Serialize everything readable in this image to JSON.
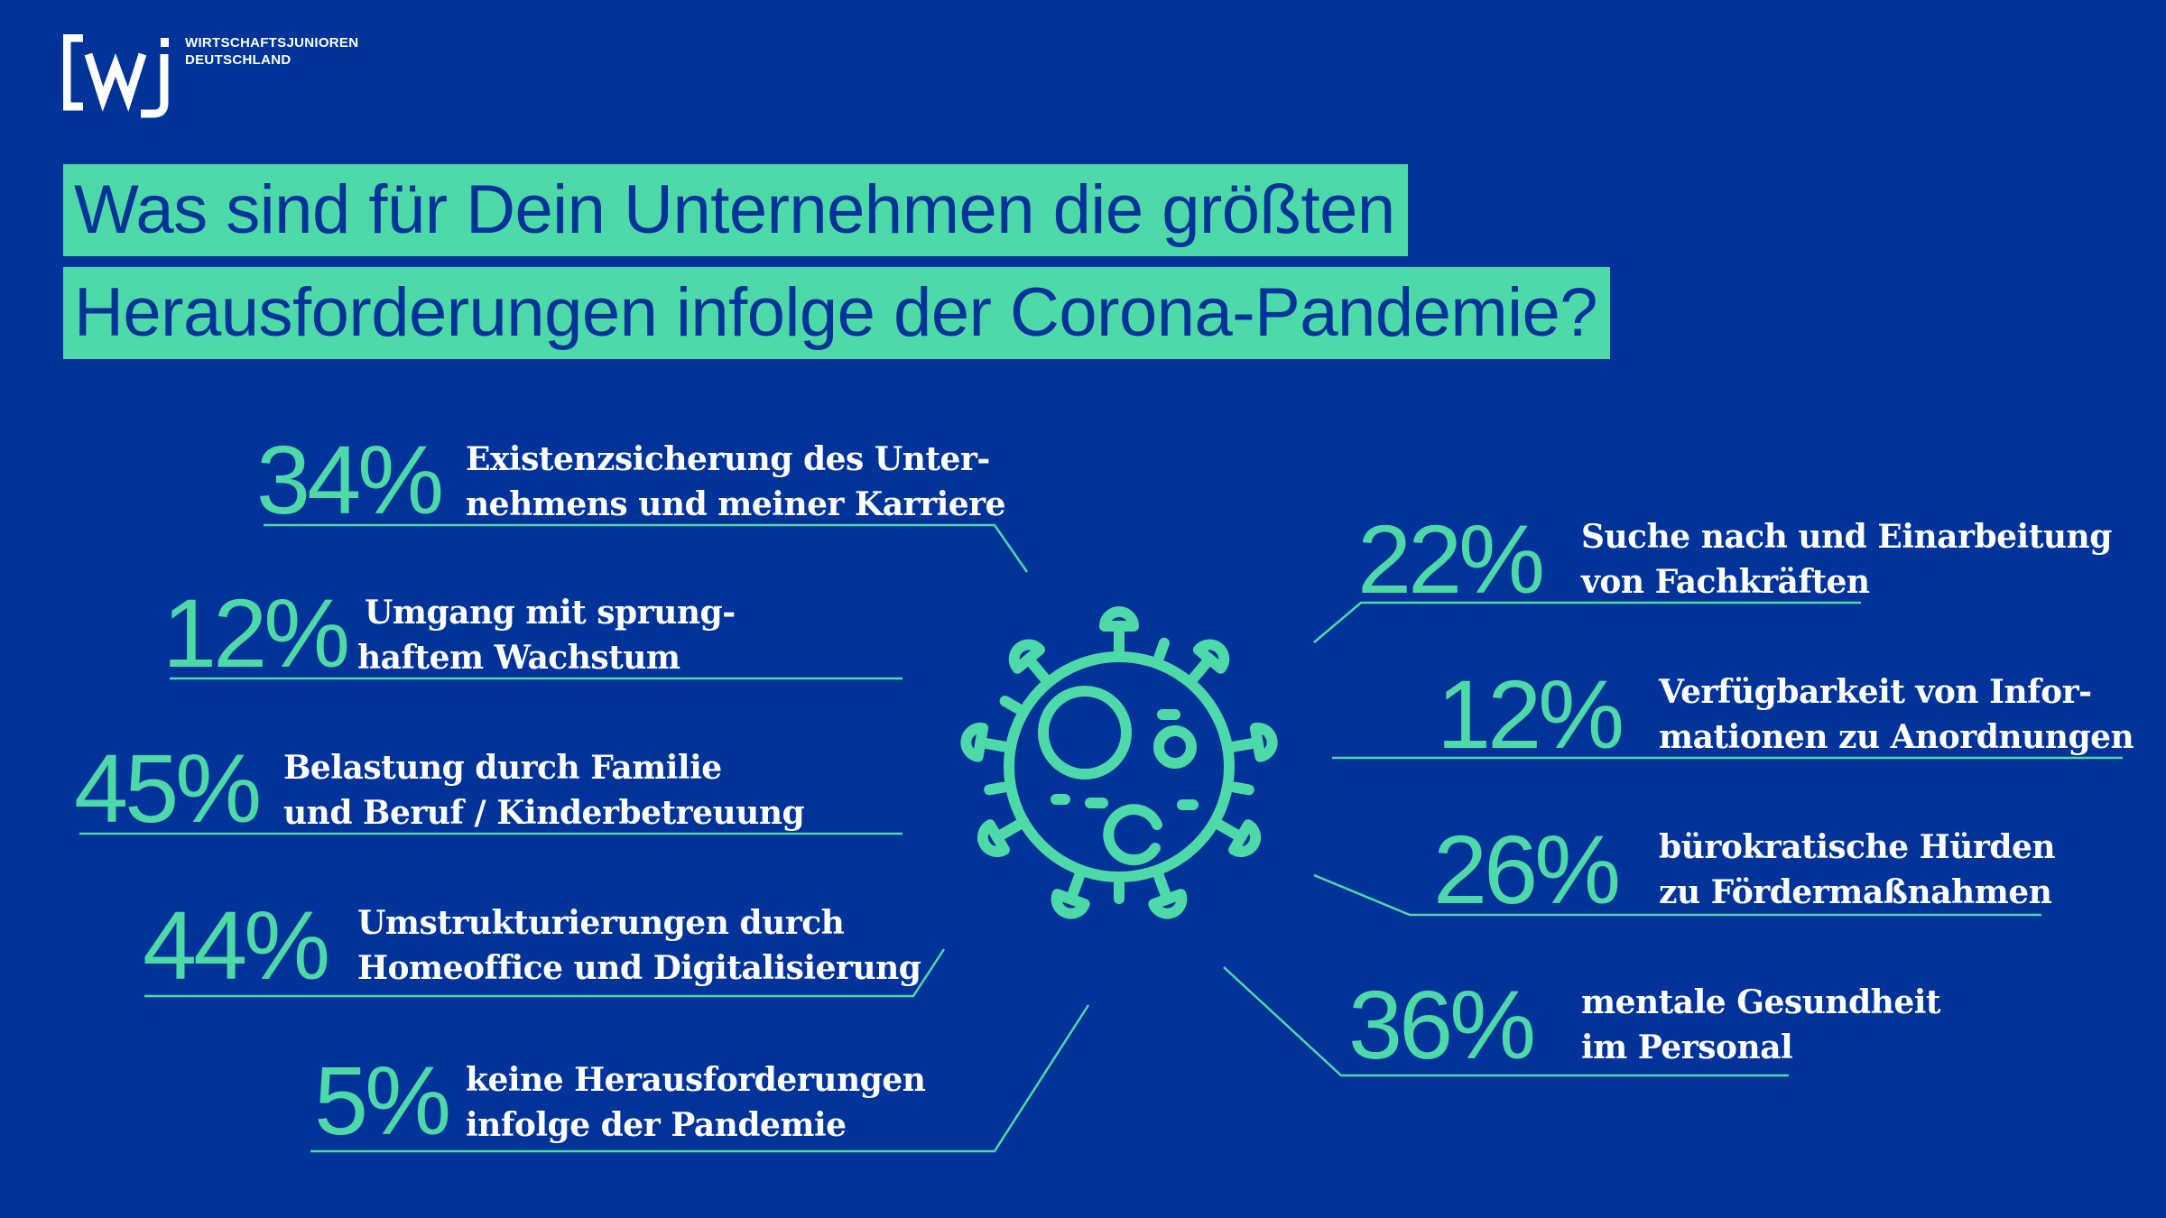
{
  "logo": {
    "mark": "[wj]",
    "line1": "WIRTSCHAFTSJUNIOREN",
    "line2": "DEUTSCHLAND"
  },
  "title": {
    "line1": "Was sind für Dein Unternehmen die größten",
    "line2": "Herausforderungen infolge der Corona-Pandemie?"
  },
  "icon": "coronavirus-icon",
  "colors": {
    "background": "#003399",
    "accent": "#4dd9a8",
    "text": "#ffffff"
  },
  "chart_data": {
    "type": "table",
    "unit": "%",
    "items": [
      {
        "value": 34,
        "pct": "34%",
        "line1": "Existenzsicherung des Unter-",
        "line2": "nehmens und meiner Karriere"
      },
      {
        "value": 12,
        "pct": "12%",
        "line1": "Umgang mit sprung-",
        "line2": "haftem Wachstum"
      },
      {
        "value": 45,
        "pct": "45%",
        "line1": "Belastung durch Familie",
        "line2": "und Beruf / Kinderbetreuung"
      },
      {
        "value": 44,
        "pct": "44%",
        "line1": "Umstrukturierungen durch",
        "line2": "Homeoffice und Digitalisierung"
      },
      {
        "value": 5,
        "pct": "5%",
        "line1": "keine Herausforderungen",
        "line2": "infolge der Pandemie"
      },
      {
        "value": 22,
        "pct": "22%",
        "line1": "Suche nach und Einarbeitung",
        "line2": "von Fachkräften"
      },
      {
        "value": 12,
        "pct": "12%",
        "line1": "Verfügbarkeit von Infor-",
        "line2": "mationen zu Anordnungen"
      },
      {
        "value": 26,
        "pct": "26%",
        "line1": "bürokratische Hürden",
        "line2": "zu Fördermaßnahmen"
      },
      {
        "value": 36,
        "pct": "36%",
        "line1": "mentale Gesundheit",
        "line2": "im Personal"
      }
    ]
  }
}
